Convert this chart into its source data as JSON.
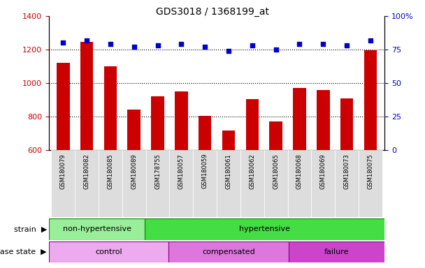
{
  "title": "GDS3018 / 1368199_at",
  "samples": [
    "GSM180079",
    "GSM180082",
    "GSM180085",
    "GSM180089",
    "GSM178755",
    "GSM180057",
    "GSM180059",
    "GSM180061",
    "GSM180062",
    "GSM180065",
    "GSM180068",
    "GSM180069",
    "GSM180073",
    "GSM180075"
  ],
  "counts": [
    1120,
    1245,
    1100,
    843,
    920,
    950,
    803,
    717,
    905,
    773,
    970,
    960,
    908,
    1195
  ],
  "percentiles": [
    80,
    82,
    79,
    77,
    78,
    79,
    77,
    74,
    78,
    75,
    79,
    79,
    78,
    82
  ],
  "ylim_left": [
    600,
    1400
  ],
  "ylim_right": [
    0,
    100
  ],
  "yticks_left": [
    600,
    800,
    1000,
    1200,
    1400
  ],
  "yticks_right": [
    0,
    25,
    50,
    75,
    100
  ],
  "ytick_right_labels": [
    "0",
    "25",
    "50",
    "75",
    "100%"
  ],
  "bar_color": "#cc0000",
  "dot_color": "#0000cc",
  "strain_data": [
    {
      "text": "non-hypertensive",
      "start": 0,
      "end": 4,
      "color": "#99ee99"
    },
    {
      "text": "hypertensive",
      "start": 4,
      "end": 14,
      "color": "#44dd44"
    }
  ],
  "disease_data": [
    {
      "text": "control",
      "start": 0,
      "end": 5,
      "color": "#eeaaee"
    },
    {
      "text": "compensated",
      "start": 5,
      "end": 10,
      "color": "#dd77dd"
    },
    {
      "text": "failure",
      "start": 10,
      "end": 14,
      "color": "#cc44cc"
    }
  ],
  "bg_color": "#ffffff",
  "xticklabel_bg": "#dddddd",
  "title_fontsize": 10,
  "axis_fontsize": 8,
  "label_fontsize": 8,
  "annot_fontsize": 8
}
